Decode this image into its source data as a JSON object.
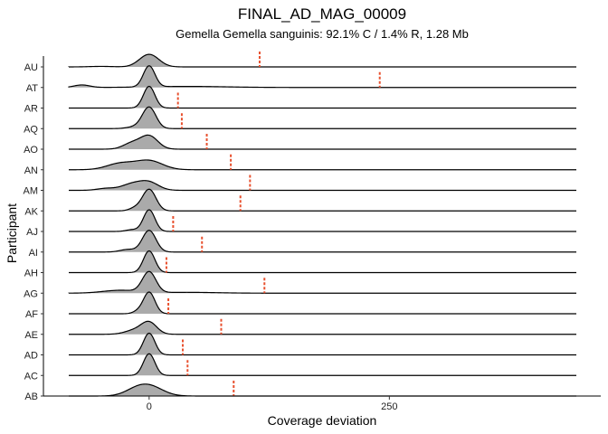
{
  "chart_data": {
    "type": "ridgeline",
    "title": "FINAL_AD_MAG_00009",
    "subtitle": "Gemella Gemella sanguinis: 92.1% C / 1.4% R, 1.28 Mb",
    "xlabel": "Coverage deviation",
    "ylabel": "Participant",
    "xlim": [
      -110,
      470
    ],
    "x_ticks": [
      0,
      250
    ],
    "x_tick_labels": [
      "0",
      "250"
    ],
    "colors": {
      "fill": "#aaaaaa",
      "line": "#000000",
      "marker": "#e8512f"
    },
    "participants": [
      {
        "id": "AU",
        "marker": 115,
        "peak": 0.58,
        "width": 16,
        "components": [
          {
            "mu": 0,
            "sd": 10,
            "w": 1.0
          },
          {
            "mu": -50,
            "sd": 12,
            "w": 0.04
          }
        ]
      },
      {
        "id": "AT",
        "marker": 240,
        "peak": 1.0,
        "width": 0,
        "components": [
          {
            "mu": 0,
            "sd": 6,
            "w": 1.0
          },
          {
            "mu": -70,
            "sd": 8,
            "w": 0.12
          },
          {
            "mu": 40,
            "sd": 40,
            "w": 0.05
          }
        ]
      },
      {
        "id": "AR",
        "marker": 30,
        "peak": 1.0,
        "width": 0,
        "components": [
          {
            "mu": 0,
            "sd": 6,
            "w": 1.0
          }
        ]
      },
      {
        "id": "AQ",
        "marker": 34,
        "peak": 1.0,
        "width": 0,
        "components": [
          {
            "mu": 0,
            "sd": 7,
            "w": 1.0
          },
          {
            "mu": -15,
            "sd": 8,
            "w": 0.08
          }
        ]
      },
      {
        "id": "AO",
        "marker": 60,
        "peak": 0.65,
        "width": 0,
        "components": [
          {
            "mu": 0,
            "sd": 9,
            "w": 1.0
          },
          {
            "mu": -18,
            "sd": 9,
            "w": 0.45
          }
        ]
      },
      {
        "id": "AN",
        "marker": 85,
        "peak": 0.45,
        "width": 0,
        "components": [
          {
            "mu": 0,
            "sd": 14,
            "w": 1.0
          },
          {
            "mu": -30,
            "sd": 14,
            "w": 0.7
          }
        ]
      },
      {
        "id": "AM",
        "marker": 105,
        "peak": 0.45,
        "width": 0,
        "components": [
          {
            "mu": 0,
            "sd": 10,
            "w": 1.0
          },
          {
            "mu": -18,
            "sd": 11,
            "w": 0.8
          },
          {
            "mu": -45,
            "sd": 9,
            "w": 0.25
          }
        ]
      },
      {
        "id": "AK",
        "marker": 95,
        "peak": 1.0,
        "width": 0,
        "components": [
          {
            "mu": 0,
            "sd": 7,
            "w": 1.0
          },
          {
            "mu": -15,
            "sd": 6,
            "w": 0.12
          }
        ]
      },
      {
        "id": "AJ",
        "marker": 25,
        "peak": 1.0,
        "width": 0,
        "components": [
          {
            "mu": 0,
            "sd": 6,
            "w": 1.0
          },
          {
            "mu": -18,
            "sd": 6,
            "w": 0.08
          }
        ]
      },
      {
        "id": "AI",
        "marker": 55,
        "peak": 1.0,
        "width": 0,
        "components": [
          {
            "mu": 0,
            "sd": 7,
            "w": 1.0
          },
          {
            "mu": -22,
            "sd": 8,
            "w": 0.12
          }
        ]
      },
      {
        "id": "AH",
        "marker": 18,
        "peak": 1.0,
        "width": 0,
        "components": [
          {
            "mu": 0,
            "sd": 6,
            "w": 1.0
          }
        ]
      },
      {
        "id": "AG",
        "marker": 120,
        "peak": 1.0,
        "width": 0,
        "components": [
          {
            "mu": 0,
            "sd": 7,
            "w": 1.0
          },
          {
            "mu": -30,
            "sd": 18,
            "w": 0.14
          },
          {
            "mu": 40,
            "sd": 30,
            "w": 0.04
          }
        ]
      },
      {
        "id": "AF",
        "marker": 20,
        "peak": 1.0,
        "width": 0,
        "components": [
          {
            "mu": 0,
            "sd": 6,
            "w": 1.0
          },
          {
            "mu": -12,
            "sd": 5,
            "w": 0.1
          }
        ]
      },
      {
        "id": "AE",
        "marker": 75,
        "peak": 0.6,
        "width": 0,
        "components": [
          {
            "mu": 0,
            "sd": 8,
            "w": 1.0
          },
          {
            "mu": -15,
            "sd": 10,
            "w": 0.35
          }
        ]
      },
      {
        "id": "AD",
        "marker": 35,
        "peak": 1.0,
        "width": 0,
        "components": [
          {
            "mu": 0,
            "sd": 6,
            "w": 1.0
          }
        ]
      },
      {
        "id": "AC",
        "marker": 40,
        "peak": 1.0,
        "width": 0,
        "components": [
          {
            "mu": 0,
            "sd": 6,
            "w": 1.0
          }
        ]
      },
      {
        "id": "AB",
        "marker": 88,
        "peak": 0.55,
        "width": 0,
        "components": [
          {
            "mu": 0,
            "sd": 14,
            "w": 1.0
          },
          {
            "mu": -15,
            "sd": 12,
            "w": 0.4
          }
        ]
      }
    ]
  }
}
